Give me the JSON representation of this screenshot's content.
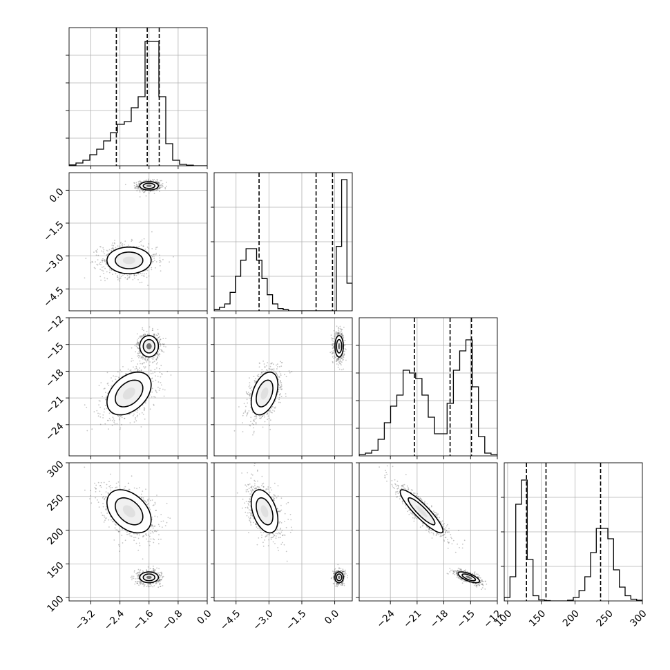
{
  "chart_data": {
    "type": "corner",
    "title": "",
    "parameters": [
      {
        "range": [
          -3.8,
          0.0
        ],
        "ticks": [
          -3.2,
          -2.4,
          -1.6,
          -0.8,
          0.0
        ],
        "tick_labels": [
          "−3.2",
          "−2.4",
          "−1.6",
          "−0.8",
          "0.0"
        ],
        "quantiles": [
          -2.5,
          -1.65,
          -1.32
        ],
        "hist": [
          0.3,
          1,
          2,
          4,
          6,
          9,
          12,
          15,
          16,
          21,
          25,
          45,
          45,
          25,
          8,
          2,
          0.5,
          0.2,
          0,
          0
        ],
        "hist_ylim": 50,
        "hist_yticks": [
          10,
          20,
          30,
          40
        ]
      },
      {
        "range": [
          -5.5,
          0.8
        ],
        "ticks": [
          -4.5,
          -3.0,
          -1.5,
          0.0
        ],
        "tick_labels": [
          "−4.5",
          "−3.0",
          "−1.5",
          "0.0"
        ],
        "quantiles": [
          -3.45,
          -0.85,
          -0.1
        ],
        "hist": [
          0.5,
          1.5,
          3,
          8,
          15,
          22,
          27,
          27,
          22,
          14,
          7,
          3,
          1,
          0.5,
          0,
          0,
          0,
          0,
          0,
          0,
          0,
          0,
          0,
          28,
          57,
          12
        ],
        "hist_ylim": 60,
        "hist_yticks": [
          15,
          30,
          45
        ]
      },
      {
        "range": [
          -27.5,
          -12.0
        ],
        "ticks": [
          -24,
          -21,
          -18,
          -15,
          -12
        ],
        "tick_labels": [
          "−24",
          "−21",
          "−18",
          "−15",
          "−12"
        ],
        "quantiles": [
          -21.3,
          -17.3,
          -14.9
        ],
        "hist": [
          0.5,
          1,
          2,
          6,
          12,
          18,
          22,
          31,
          30,
          28,
          22,
          14,
          8,
          8,
          19,
          31,
          38,
          42,
          25,
          7,
          1,
          0.5
        ],
        "hist_ylim": 50,
        "hist_yticks": [
          10,
          20,
          30,
          40
        ]
      },
      {
        "range": [
          95,
          300
        ],
        "ticks": [
          100,
          150,
          200,
          250,
          300
        ],
        "tick_labels": [
          "100",
          "150",
          "200",
          "250",
          "300"
        ],
        "quantiles": [
          128,
          157,
          238
        ],
        "hist": [
          1,
          7,
          28,
          35,
          12,
          1.5,
          0.3,
          0.1,
          0,
          0,
          0,
          0.2,
          1,
          3,
          7,
          14,
          21,
          21,
          18,
          9,
          4,
          1.5,
          0.5,
          0.2
        ],
        "hist_ylim": 40,
        "hist_yticks": [
          10,
          20,
          30
        ]
      }
    ],
    "modes": [
      {
        "mean": [
          -1.6,
          0.2,
          -15.2,
          130
        ],
        "sd": [
          0.16,
          0.12,
          0.75,
          5
        ],
        "weight": 0.45,
        "corr": [
          [
            1,
            0,
            0,
            0
          ],
          [
            0,
            1,
            0,
            0
          ],
          [
            0,
            0,
            1,
            -0.7
          ],
          [
            0,
            0,
            -0.7,
            1
          ]
        ]
      },
      {
        "mean": [
          -2.15,
          -3.2,
          -20.5,
          228
        ],
        "sd": [
          0.38,
          0.38,
          1.5,
          20
        ],
        "weight": 0.55,
        "corr": [
          [
            1,
            0,
            0.4,
            -0.4
          ],
          [
            0,
            1,
            0.4,
            -0.4
          ],
          [
            0.4,
            0.4,
            1,
            -0.9
          ],
          [
            -0.4,
            -0.4,
            -0.9,
            1
          ]
        ]
      }
    ],
    "grid": true,
    "contour_levels": [
      1.0,
      1.6
    ]
  }
}
